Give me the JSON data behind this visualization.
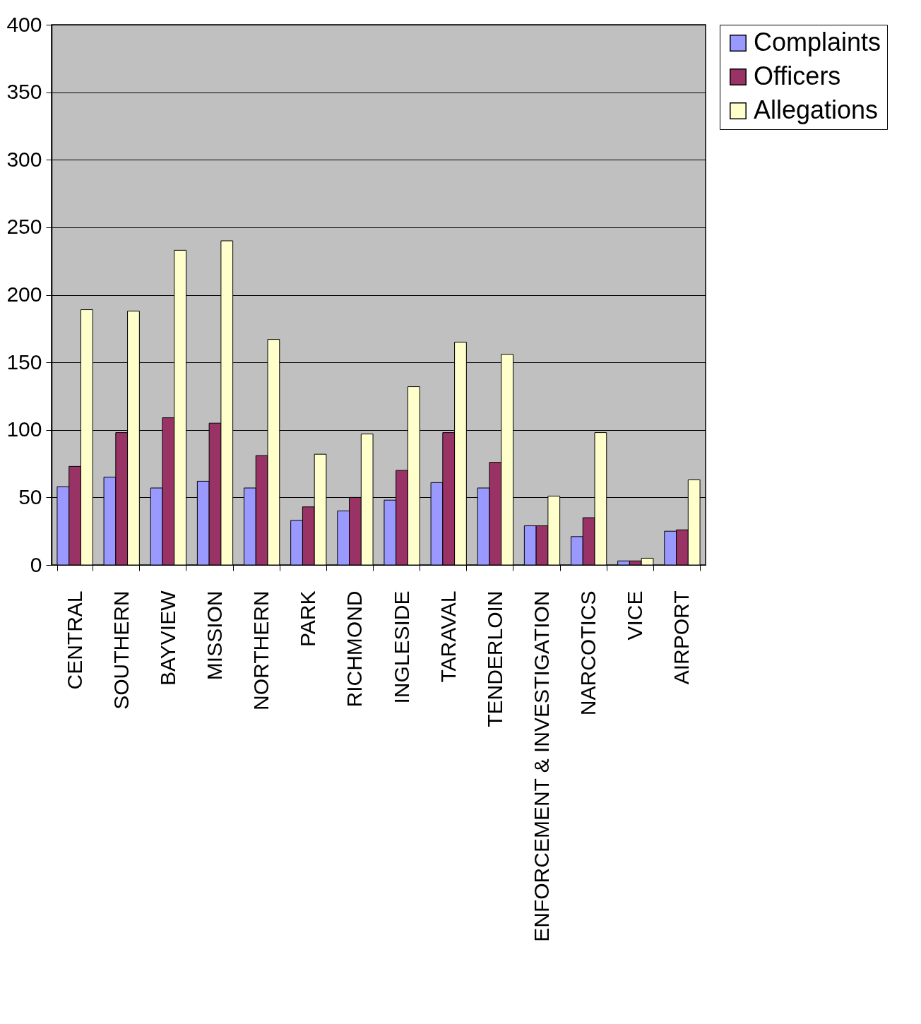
{
  "chart_data": {
    "type": "bar",
    "categories": [
      "CENTRAL",
      "SOUTHERN",
      "BAYVIEW",
      "MISSION",
      "NORTHERN",
      "PARK",
      "RICHMOND",
      "INGLESIDE",
      "TARAVAL",
      "TENDERLOIN",
      "ENFORCEMENT & INVESTIGATION",
      "NARCOTICS",
      "VICE",
      "AIRPORT"
    ],
    "series": [
      {
        "name": "Complaints",
        "color": "#9999ff",
        "values": [
          58,
          65,
          57,
          62,
          57,
          33,
          40,
          48,
          61,
          57,
          29,
          21,
          3,
          25
        ]
      },
      {
        "name": "Officers",
        "color": "#993366",
        "values": [
          73,
          98,
          109,
          105,
          81,
          43,
          50,
          70,
          98,
          76,
          29,
          35,
          3,
          26
        ]
      },
      {
        "name": "Allegations",
        "color": "#ffffcc",
        "values": [
          189,
          188,
          233,
          240,
          167,
          82,
          97,
          132,
          165,
          156,
          51,
          98,
          5,
          63
        ]
      }
    ],
    "ylim": [
      0,
      400
    ],
    "yticks": [
      0,
      50,
      100,
      150,
      200,
      250,
      300,
      350,
      400
    ],
    "grid": "y",
    "legend": "right"
  }
}
